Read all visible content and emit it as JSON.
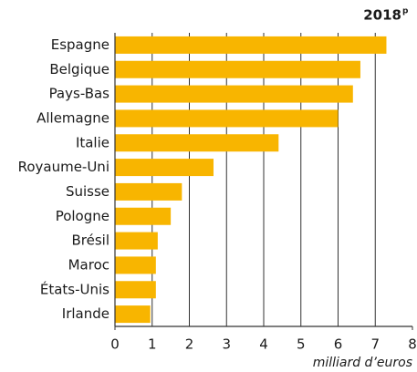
{
  "chart_data": {
    "type": "barh",
    "title": "2018",
    "title_superscript": "p",
    "categories": [
      "Espagne",
      "Belgique",
      "Pays-Bas",
      "Allemagne",
      "Italie",
      "Royaume-Uni",
      "Suisse",
      "Pologne",
      "Brésil",
      "Maroc",
      "États-Unis",
      "Irlande"
    ],
    "values": [
      7.3,
      6.6,
      6.4,
      6.0,
      4.4,
      2.65,
      1.8,
      1.5,
      1.15,
      1.1,
      1.1,
      0.95
    ],
    "color": "#f8b500",
    "xlabel": "milliard d’euros",
    "xlim": [
      0,
      8
    ],
    "xticks": [
      0,
      1,
      2,
      3,
      4,
      5,
      6,
      7,
      8
    ],
    "grid": true
  }
}
